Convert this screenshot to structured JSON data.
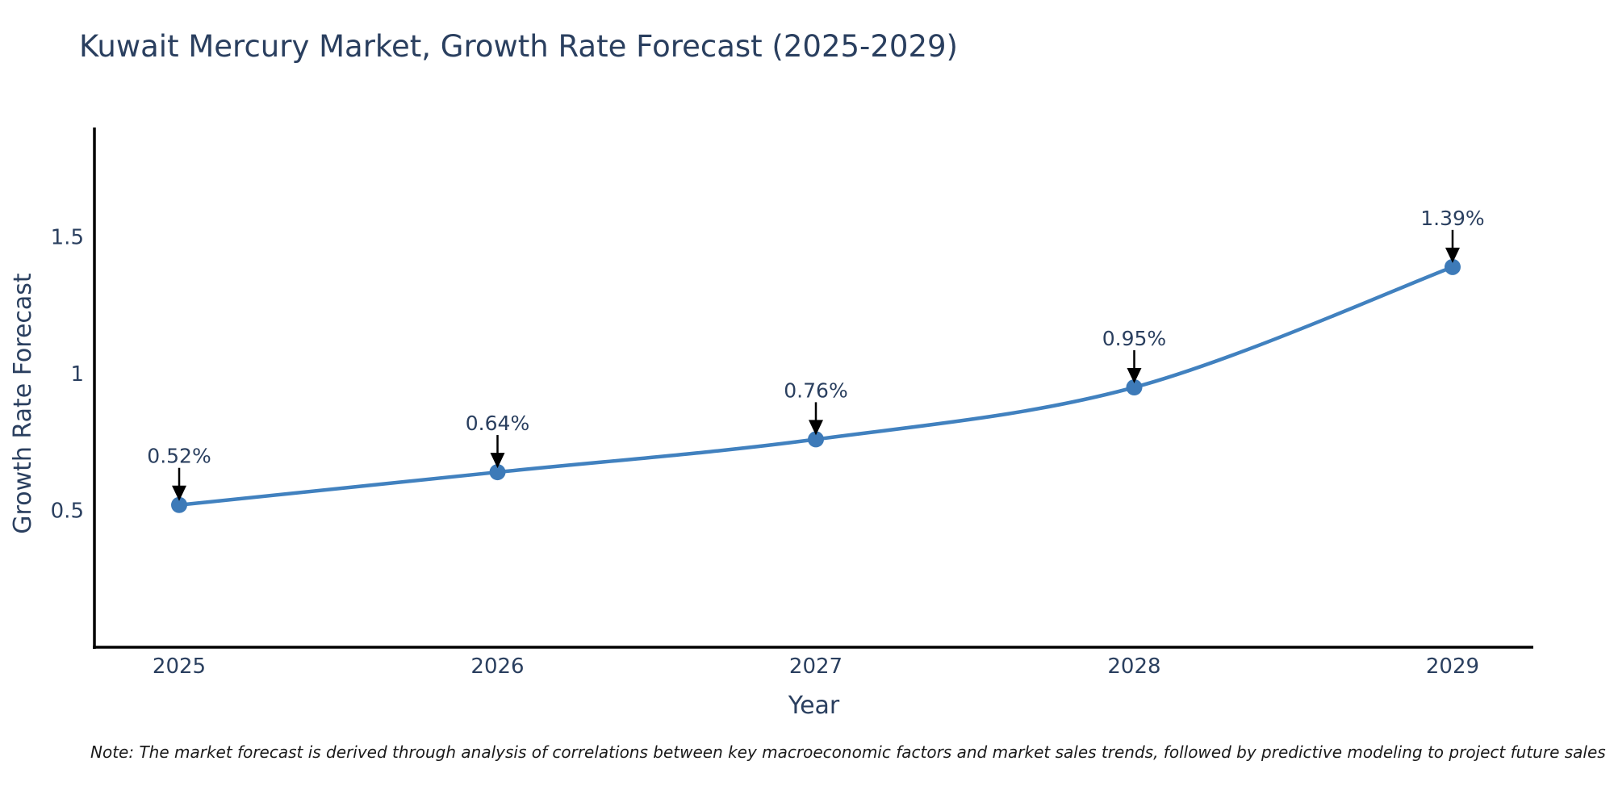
{
  "note": "Note: The market forecast is derived through analysis of correlations between key macroeconomic factors and market sales trends, followed by predictive modeling to project future sales",
  "chart_data": {
    "type": "line",
    "title": "Kuwait Mercury Market, Growth Rate Forecast (2025-2029)",
    "xlabel": "Year",
    "ylabel": "Growth Rate Forecast",
    "x": [
      2025,
      2026,
      2027,
      2028,
      2029
    ],
    "xticks": [
      "2025",
      "2026",
      "2027",
      "2028",
      "2029"
    ],
    "series": [
      {
        "name": "Growth Rate Forecast",
        "values": [
          0.52,
          0.64,
          0.76,
          0.95,
          1.39
        ]
      }
    ],
    "point_labels": [
      "0.52%",
      "0.64%",
      "0.76%",
      "0.95%",
      "1.39%"
    ],
    "yticks": [
      0.5,
      1,
      1.5
    ],
    "ytick_labels": [
      "0.5",
      "1",
      "1.5"
    ],
    "ylim": [
      0,
      1.9
    ],
    "grid": false,
    "legend": false,
    "line_shape": "spline",
    "colors": {
      "line": "#4181bf",
      "marker": "#3d7ab8",
      "annotation_text": "#2a3f5f",
      "annotation_arrow": "#000000",
      "axis_line": "#000000",
      "tick_text": "#2a3f5f",
      "title_text": "#2a3f5f",
      "note_text": "#1a1a1a",
      "background": "#ffffff"
    }
  }
}
